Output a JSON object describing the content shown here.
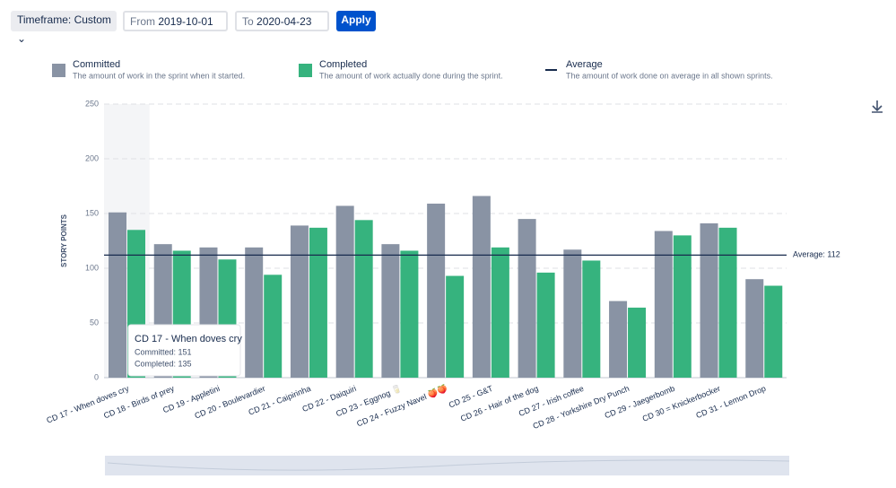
{
  "controls": {
    "timeframe": "Timeframe: Custom",
    "from_label": "From",
    "from_date": "2019-10-01",
    "to_label": "To",
    "to_date": "2020-04-23",
    "apply": "Apply"
  },
  "legend": [
    {
      "name": "Committed",
      "description": "The amount of work in the sprint when it started."
    },
    {
      "name": "Completed",
      "description": "The amount of work actually done during the sprint."
    },
    {
      "name": "Average",
      "description": "The amount of work done on average in all shown sprints."
    }
  ],
  "chart_data": {
    "type": "bar",
    "y_label": "STORY POINTS",
    "categories": [
      "CD 17 - When doves cry",
      "CD 18 - Birds of prey",
      "CD 19 - Appletini",
      "CD 20 - Boulevardier",
      "CD 21 - Caipirinha",
      "CD 22 - Daiquiri",
      "CD 23 - Eggnog 🥛",
      "CD 24 - Fuzzy Navel 🍑🍑",
      "CD 25 - G&T",
      "CD 26 - Hair of the dog",
      "CD 27 - Irish coffee",
      "CD 28 - Yorkshire Dry Punch",
      "CD 29 - Jaegerbomb",
      "CD 30 = Knickerbocker",
      "CD 31 - Lemon Drop"
    ],
    "series": [
      {
        "name": "Committed",
        "color": "#8993a4",
        "values": [
          151,
          122,
          119,
          119,
          139,
          157,
          122,
          159,
          166,
          145,
          117,
          70,
          134,
          141,
          90
        ]
      },
      {
        "name": "Completed",
        "color": "#36b37e",
        "values": [
          135,
          116,
          108,
          94,
          137,
          144,
          116,
          93,
          119,
          96,
          107,
          64,
          130,
          137,
          84
        ]
      }
    ],
    "average": {
      "value": 112,
      "label": "Average: 112",
      "color": "#172b4d"
    },
    "ylim": [
      0,
      250
    ],
    "yticks": [
      0,
      50,
      100,
      150,
      200,
      250
    ],
    "grid": true,
    "tooltip": {
      "title": "CD 17 - When doves cry",
      "lines": [
        "Committed: 151",
        "Completed: 135"
      ]
    }
  }
}
